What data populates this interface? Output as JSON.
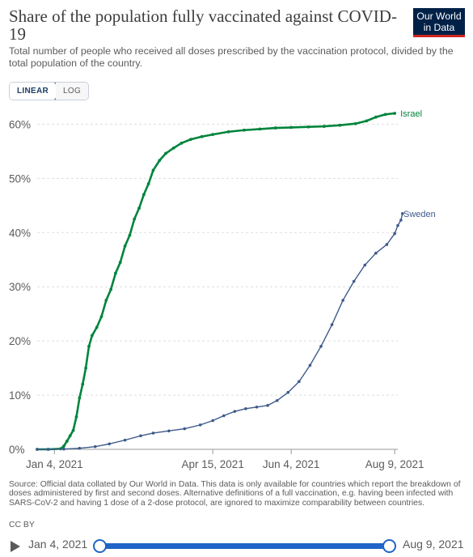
{
  "header": {
    "title": "Share of the population fully vaccinated against COVID-19",
    "subtitle": "Total number of people who received all doses prescribed by the vaccination protocol, divided by the total population of the country.",
    "logo_line1": "Our World",
    "logo_line2": "in Data"
  },
  "scale_toggle": {
    "linear": "LINEAR",
    "log": "LOG",
    "selected": "linear"
  },
  "footer": {
    "sources": "Source: Official data collated by Our World in Data. This data is only available for countries which report the breakdown of doses administered by first and second doses. Alternative definitions of a full vaccination, e.g. having been infected with SARS-CoV-2 and having 1 dose of a 2-dose protocol, are ignored to maximize comparability between countries.",
    "license": "CC BY"
  },
  "timeline": {
    "start_label": "Jan 4, 2021",
    "end_label": "Aug 9, 2021"
  },
  "colors": {
    "israel": "#00843d",
    "sweden": "#3d5a8a",
    "grid": "#dddddd",
    "axis_text": "#5b5b5b"
  },
  "chart_data": {
    "type": "line",
    "x_range": [
      "2020-12-24",
      "2021-08-11"
    ],
    "ylim": [
      0,
      62
    ],
    "y_ticks": [
      0,
      10,
      20,
      30,
      40,
      50,
      60
    ],
    "y_tick_labels": [
      "0%",
      "10%",
      "20%",
      "30%",
      "40%",
      "50%",
      "60%"
    ],
    "x_ticks": [
      "2021-01-04",
      "2021-04-15",
      "2021-06-04",
      "2021-08-09"
    ],
    "x_tick_labels": [
      "Jan 4, 2021",
      "Apr 15, 2021",
      "Jun 4, 2021",
      "Aug 9, 2021"
    ],
    "grid": "horizontal dashed",
    "series": [
      {
        "name": "Israel",
        "color": "#00843d",
        "points": [
          [
            "2020-12-24",
            0
          ],
          [
            "2020-12-31",
            0
          ],
          [
            "2021-01-08",
            0.1
          ],
          [
            "2021-01-10",
            0.6
          ],
          [
            "2021-01-12",
            1.5
          ],
          [
            "2021-01-14",
            2.5
          ],
          [
            "2021-01-16",
            3.5
          ],
          [
            "2021-01-18",
            6
          ],
          [
            "2021-01-20",
            9.5
          ],
          [
            "2021-01-22",
            12
          ],
          [
            "2021-01-24",
            15
          ],
          [
            "2021-01-26",
            19
          ],
          [
            "2021-01-28",
            21
          ],
          [
            "2021-01-31",
            22.5
          ],
          [
            "2021-02-03",
            24.5
          ],
          [
            "2021-02-06",
            27.5
          ],
          [
            "2021-02-09",
            29.5
          ],
          [
            "2021-02-12",
            32.5
          ],
          [
            "2021-02-15",
            34.5
          ],
          [
            "2021-02-18",
            37.5
          ],
          [
            "2021-02-21",
            39.5
          ],
          [
            "2021-02-24",
            42.5
          ],
          [
            "2021-02-27",
            44.5
          ],
          [
            "2021-03-02",
            47
          ],
          [
            "2021-03-05",
            49
          ],
          [
            "2021-03-08",
            51.5
          ],
          [
            "2021-03-12",
            53.3
          ],
          [
            "2021-03-16",
            54.6
          ],
          [
            "2021-03-21",
            55.6
          ],
          [
            "2021-03-26",
            56.5
          ],
          [
            "2021-04-01",
            57.2
          ],
          [
            "2021-04-08",
            57.7
          ],
          [
            "2021-04-15",
            58.1
          ],
          [
            "2021-04-25",
            58.6
          ],
          [
            "2021-05-05",
            58.9
          ],
          [
            "2021-05-15",
            59.1
          ],
          [
            "2021-05-25",
            59.3
          ],
          [
            "2021-06-04",
            59.4
          ],
          [
            "2021-06-15",
            59.5
          ],
          [
            "2021-06-25",
            59.6
          ],
          [
            "2021-07-05",
            59.8
          ],
          [
            "2021-07-15",
            60.1
          ],
          [
            "2021-07-22",
            60.6
          ],
          [
            "2021-07-28",
            61.3
          ],
          [
            "2021-08-03",
            61.8
          ],
          [
            "2021-08-09",
            62.0
          ]
        ]
      },
      {
        "name": "Sweden",
        "color": "#3d5a8a",
        "points": [
          [
            "2020-12-24",
            0
          ],
          [
            "2020-12-31",
            0
          ],
          [
            "2021-01-10",
            0.05
          ],
          [
            "2021-01-20",
            0.2
          ],
          [
            "2021-01-30",
            0.5
          ],
          [
            "2021-02-08",
            1.0
          ],
          [
            "2021-02-18",
            1.7
          ],
          [
            "2021-02-28",
            2.5
          ],
          [
            "2021-03-08",
            3.0
          ],
          [
            "2021-03-18",
            3.4
          ],
          [
            "2021-03-28",
            3.8
          ],
          [
            "2021-04-07",
            4.5
          ],
          [
            "2021-04-15",
            5.3
          ],
          [
            "2021-04-22",
            6.2
          ],
          [
            "2021-04-29",
            7.0
          ],
          [
            "2021-05-06",
            7.5
          ],
          [
            "2021-05-13",
            7.8
          ],
          [
            "2021-05-20",
            8.1
          ],
          [
            "2021-05-26",
            9.0
          ],
          [
            "2021-06-02",
            10.5
          ],
          [
            "2021-06-09",
            12.5
          ],
          [
            "2021-06-16",
            15.5
          ],
          [
            "2021-06-23",
            19
          ],
          [
            "2021-06-30",
            23
          ],
          [
            "2021-07-07",
            27.5
          ],
          [
            "2021-07-14",
            31
          ],
          [
            "2021-07-21",
            34
          ],
          [
            "2021-07-28",
            36.2
          ],
          [
            "2021-08-04",
            37.8
          ],
          [
            "2021-08-09",
            39.8
          ],
          [
            "2021-08-11",
            41.3
          ],
          [
            "2021-08-13",
            42.3
          ],
          [
            "2021-08-14",
            43.5
          ]
        ]
      }
    ]
  }
}
